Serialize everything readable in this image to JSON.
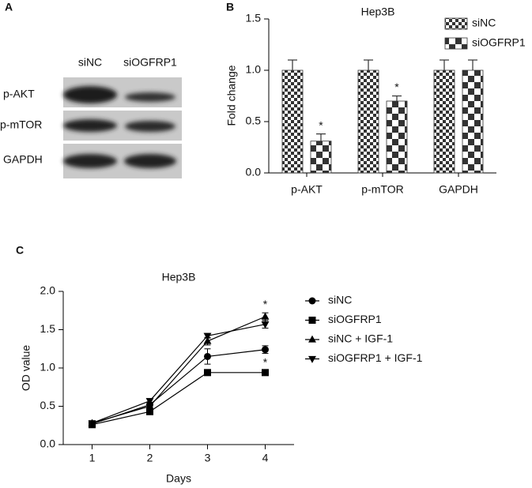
{
  "blot": {
    "panel_label": "A",
    "columns": [
      "siNC",
      "siOGFRP1"
    ],
    "rows": [
      "p-AKT",
      "p-mTOR",
      "GAPDH"
    ]
  },
  "chart_data": [
    {
      "type": "bar",
      "panel_label": "B",
      "title": "Hep3B",
      "ylabel": "Fold change",
      "categories": [
        "p-AKT",
        "p-mTOR",
        "GAPDH"
      ],
      "series": [
        {
          "name": "siNC",
          "color": "#333333",
          "pattern": "fine",
          "values": [
            1.0,
            1.0,
            1.0
          ],
          "errors": [
            0.1,
            0.1,
            0.1
          ]
        },
        {
          "name": "siOGFRP1",
          "color": "#333333",
          "pattern": "coarse",
          "values": [
            0.31,
            0.7,
            1.0
          ],
          "errors": [
            0.07,
            0.05,
            0.1
          ]
        }
      ],
      "annotations": [
        {
          "text": "*",
          "category": "p-AKT",
          "series": "siOGFRP1"
        },
        {
          "text": "*",
          "category": "p-mTOR",
          "series": "siOGFRP1"
        }
      ],
      "ylim": [
        0,
        1.5
      ],
      "yticks": [
        {
          "value": 0,
          "label": "0.0"
        },
        0.5,
        {
          "value": 1,
          "label": "1.0"
        },
        1.5
      ],
      "legend": "top-right"
    },
    {
      "type": "line",
      "panel_label": "C",
      "title": "Hep3B",
      "xlabel": "Days",
      "ylabel": "OD value",
      "x": [
        1,
        2,
        3,
        4
      ],
      "series": [
        {
          "name": "siNC",
          "color": "#000000",
          "marker": "circle",
          "values": [
            0.27,
            0.52,
            1.15,
            1.24
          ],
          "errors": [
            0.03,
            0.03,
            0.1,
            0.05
          ]
        },
        {
          "name": "siOGFRP1",
          "color": "#000000",
          "marker": "square",
          "values": [
            0.26,
            0.43,
            0.94,
            0.94
          ],
          "errors": [
            0.02,
            0.03,
            0.02,
            0.02
          ]
        },
        {
          "name": "siNC + IGF-1",
          "color": "#000000",
          "marker": "triangle-up",
          "values": [
            0.28,
            0.5,
            1.35,
            1.67
          ],
          "errors": [
            0.03,
            0.03,
            0.05,
            0.05
          ]
        },
        {
          "name": "siOGFRP1 + IGF-1",
          "color": "#000000",
          "marker": "triangle-down",
          "values": [
            0.28,
            0.57,
            1.42,
            1.57
          ],
          "errors": [
            0.03,
            0.03,
            0.03,
            0.05
          ]
        }
      ],
      "annotations": [
        {
          "text": "*",
          "x": 4,
          "series": "siNC + IGF-1"
        },
        {
          "text": "*",
          "x": 4,
          "series": "siOGFRP1"
        }
      ],
      "xlim": [
        0.5,
        4.5
      ],
      "xticks": [
        1,
        2,
        3,
        4
      ],
      "ylim": [
        0,
        2
      ],
      "yticks": [
        {
          "value": 0,
          "label": "0.0"
        },
        0.5,
        {
          "value": 1,
          "label": "1.0"
        },
        1.5,
        {
          "value": 2,
          "label": "2.0"
        }
      ],
      "legend": "right"
    }
  ]
}
